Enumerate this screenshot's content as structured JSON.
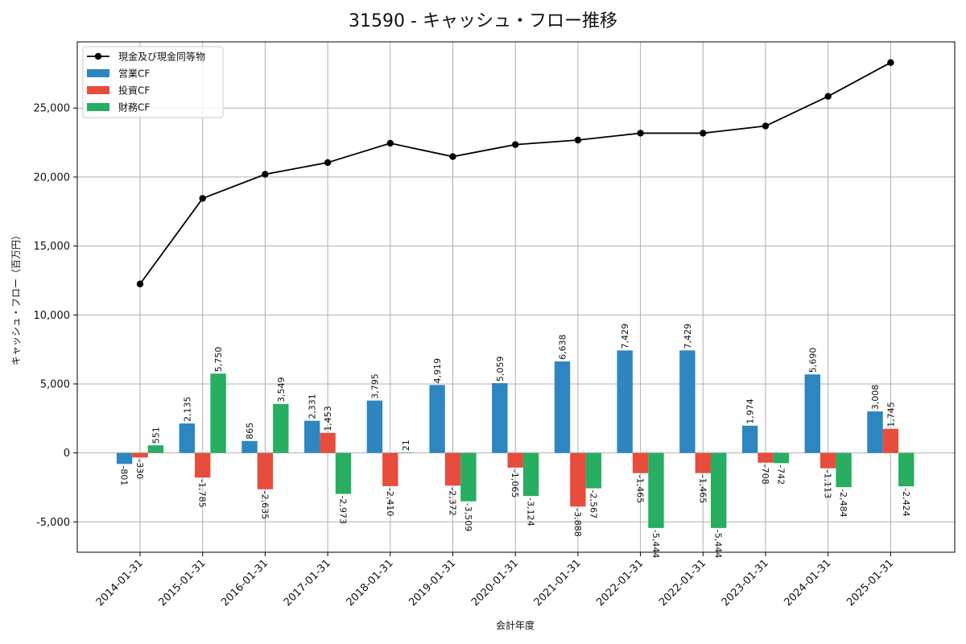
{
  "chart_data": {
    "type": "bar",
    "title": "31590 - キャッシュ・フロー推移",
    "xlabel": "会計年度",
    "ylabel": "キャッシュ・フロー（百万円）",
    "ylim": [
      -7200,
      29800
    ],
    "yticks": [
      -5000,
      0,
      5000,
      10000,
      15000,
      20000,
      25000
    ],
    "ytick_labels": [
      "-5,000",
      "0",
      "5,000",
      "10,000",
      "15,000",
      "20,000",
      "25,000"
    ],
    "grid": true,
    "legend_position": "top-left",
    "categories": [
      "2014-01-31",
      "2015-01-31",
      "2016-01-31",
      "2017-01-31",
      "2018-01-31",
      "2019-01-31",
      "2020-01-31",
      "2021-01-31",
      "2022-01-31",
      "2022-01-31",
      "2023-01-31",
      "2024-01-31",
      "2025-01-31"
    ],
    "series": [
      {
        "name": "営業CF",
        "type": "bar",
        "color": "#2e86c1",
        "values": [
          -801,
          2135,
          865,
          2331,
          3795,
          4919,
          5059,
          6638,
          7429,
          7429,
          1974,
          5690,
          3008
        ],
        "labels": [
          "-801",
          "2,135",
          "865",
          "2,331",
          "3,795",
          "4,919",
          "5,059",
          "6,638",
          "7,429",
          "7,429",
          "1,974",
          "5,690",
          "3,008"
        ]
      },
      {
        "name": "投資CF",
        "type": "bar",
        "color": "#e74c3c",
        "values": [
          -330,
          -1785,
          -2635,
          1453,
          -2410,
          -2372,
          -1065,
          -3888,
          -1465,
          -1465,
          -708,
          -1113,
          1745
        ],
        "labels": [
          "-330",
          "-1,785",
          "-2,635",
          "1,453",
          "-2,410",
          "-2,372",
          "-1,065",
          "-3,888",
          "-1,465",
          "-1,465",
          "-708",
          "-1,113",
          "1,745"
        ]
      },
      {
        "name": "財務CF",
        "type": "bar",
        "color": "#27ae60",
        "values": [
          551,
          5750,
          3549,
          -2973,
          21,
          -3509,
          -3124,
          -2567,
          -5444,
          -5444,
          -742,
          -2484,
          -2424
        ],
        "labels": [
          "551",
          "5,750",
          "3,549",
          "-2,973",
          "21",
          "-3,509",
          "-3,124",
          "-2,567",
          "-5,444",
          "-5,444",
          "-742",
          "-2,484",
          "-2,424"
        ]
      },
      {
        "name": "現金及び現金同等物",
        "type": "line",
        "color": "#000000",
        "values": [
          12250,
          18450,
          20200,
          21050,
          22450,
          21480,
          22350,
          22680,
          23180,
          23180,
          23700,
          25850,
          28300
        ]
      }
    ]
  }
}
